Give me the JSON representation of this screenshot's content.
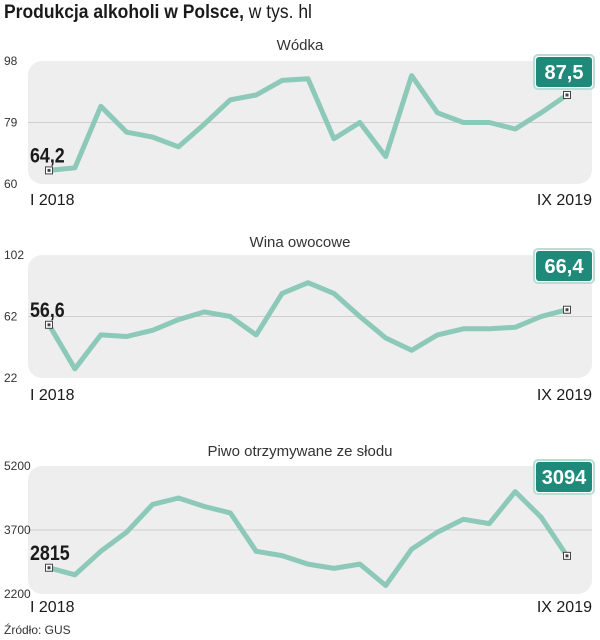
{
  "header": {
    "title": "Produkcja alkoholi w Polsce,",
    "unit": "w tys. hl"
  },
  "source": "Źródło: GUS",
  "colors": {
    "line": "#8cc9b8",
    "panel": "#eeeeee",
    "badge": "#1f8a7a",
    "text": "#1a1a1a"
  },
  "chart_data": [
    {
      "type": "line",
      "title": "Wódka",
      "x_start": "I 2018",
      "x_end": "IX 2019",
      "yticks": [
        "98",
        "79",
        "60"
      ],
      "ylim": [
        60,
        98
      ],
      "start_label": "64,2",
      "end_label": "87,5",
      "values": [
        64.2,
        65,
        84,
        76,
        74.5,
        71.5,
        78.5,
        86,
        87.5,
        92,
        92.5,
        74,
        79,
        68.5,
        93.5,
        82,
        79,
        79,
        77,
        82,
        87.5
      ]
    },
    {
      "type": "line",
      "title": "Wina owocowe",
      "x_start": "I 2018",
      "x_end": "IX 2019",
      "yticks": [
        "102",
        "62",
        "22"
      ],
      "ylim": [
        22,
        102
      ],
      "start_label": "56,6",
      "end_label": "66,4",
      "values": [
        56.6,
        28,
        50,
        49,
        53,
        60,
        65,
        62,
        50,
        77,
        84,
        77,
        62,
        48,
        40,
        50,
        54,
        54,
        55,
        62,
        66.4
      ]
    },
    {
      "type": "line",
      "title": "Piwo otrzymywane ze słodu",
      "x_start": "I 2018",
      "x_end": "IX 2019",
      "yticks": [
        "5200",
        "3700",
        "2200"
      ],
      "ylim": [
        2200,
        5200
      ],
      "start_label": "2815",
      "end_label": "3094",
      "values": [
        2815,
        2650,
        3200,
        3650,
        4300,
        4450,
        4250,
        4100,
        3200,
        3100,
        2900,
        2800,
        2900,
        2400,
        3250,
        3650,
        3950,
        3850,
        4600,
        4000,
        3094
      ]
    }
  ]
}
